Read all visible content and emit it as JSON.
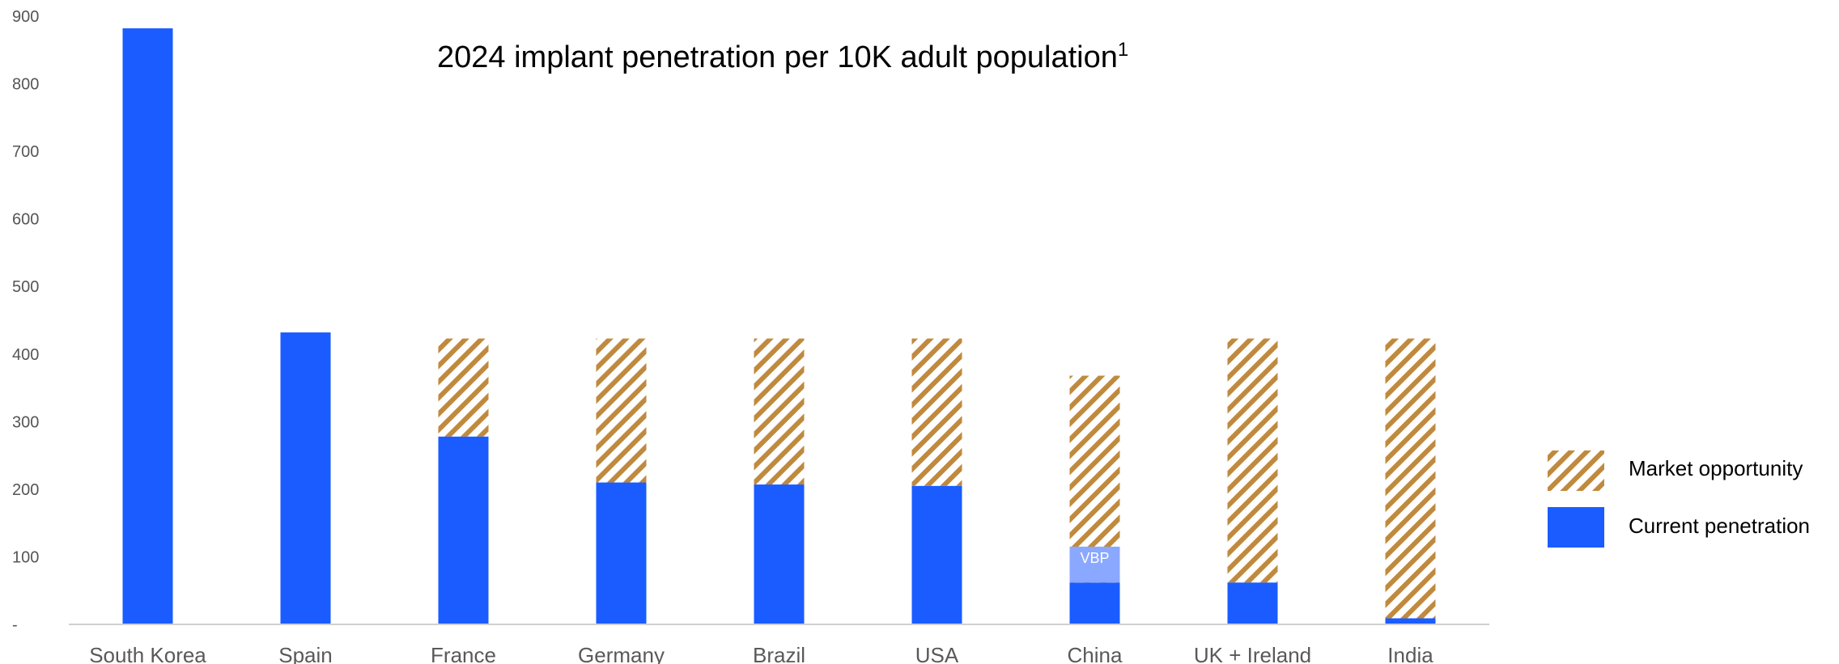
{
  "chart_data": {
    "type": "bar",
    "title": "2024 implant penetration per 10K adult population",
    "title_superscript": "1",
    "categories": [
      "South Korea",
      "Spain",
      "France",
      "Germany",
      "Brazil",
      "USA",
      "China",
      "UK + Ireland",
      "India"
    ],
    "series": [
      {
        "name": "Current penetration",
        "values": [
          882,
          432,
          278,
          210,
          207,
          205,
          62,
          62,
          9
        ]
      },
      {
        "name": "Market opportunity",
        "values": [
          0,
          0,
          145,
          213,
          216,
          218,
          306,
          361,
          414
        ]
      }
    ],
    "vbp_segment": {
      "category": "China",
      "from": 62,
      "to": 115,
      "label": "VBP"
    },
    "ylim": [
      0,
      900
    ],
    "yticks": [
      0,
      100,
      200,
      300,
      400,
      500,
      600,
      700,
      800,
      900
    ],
    "ytick_labels": [
      "-",
      "100",
      "200",
      "300",
      "400",
      "500",
      "600",
      "700",
      "800",
      "900"
    ],
    "xlabel": "",
    "ylabel": "",
    "grid": false,
    "legend_position": "right",
    "colors": {
      "current": "#1a5cff",
      "opportunity": "#c08a3e",
      "vbp": "#8aa8ff",
      "axis": "#d0d0d0"
    }
  },
  "legend": {
    "items": [
      {
        "label": "Market opportunity",
        "key": "opportunity"
      },
      {
        "label": "Current penetration",
        "key": "current"
      }
    ]
  }
}
